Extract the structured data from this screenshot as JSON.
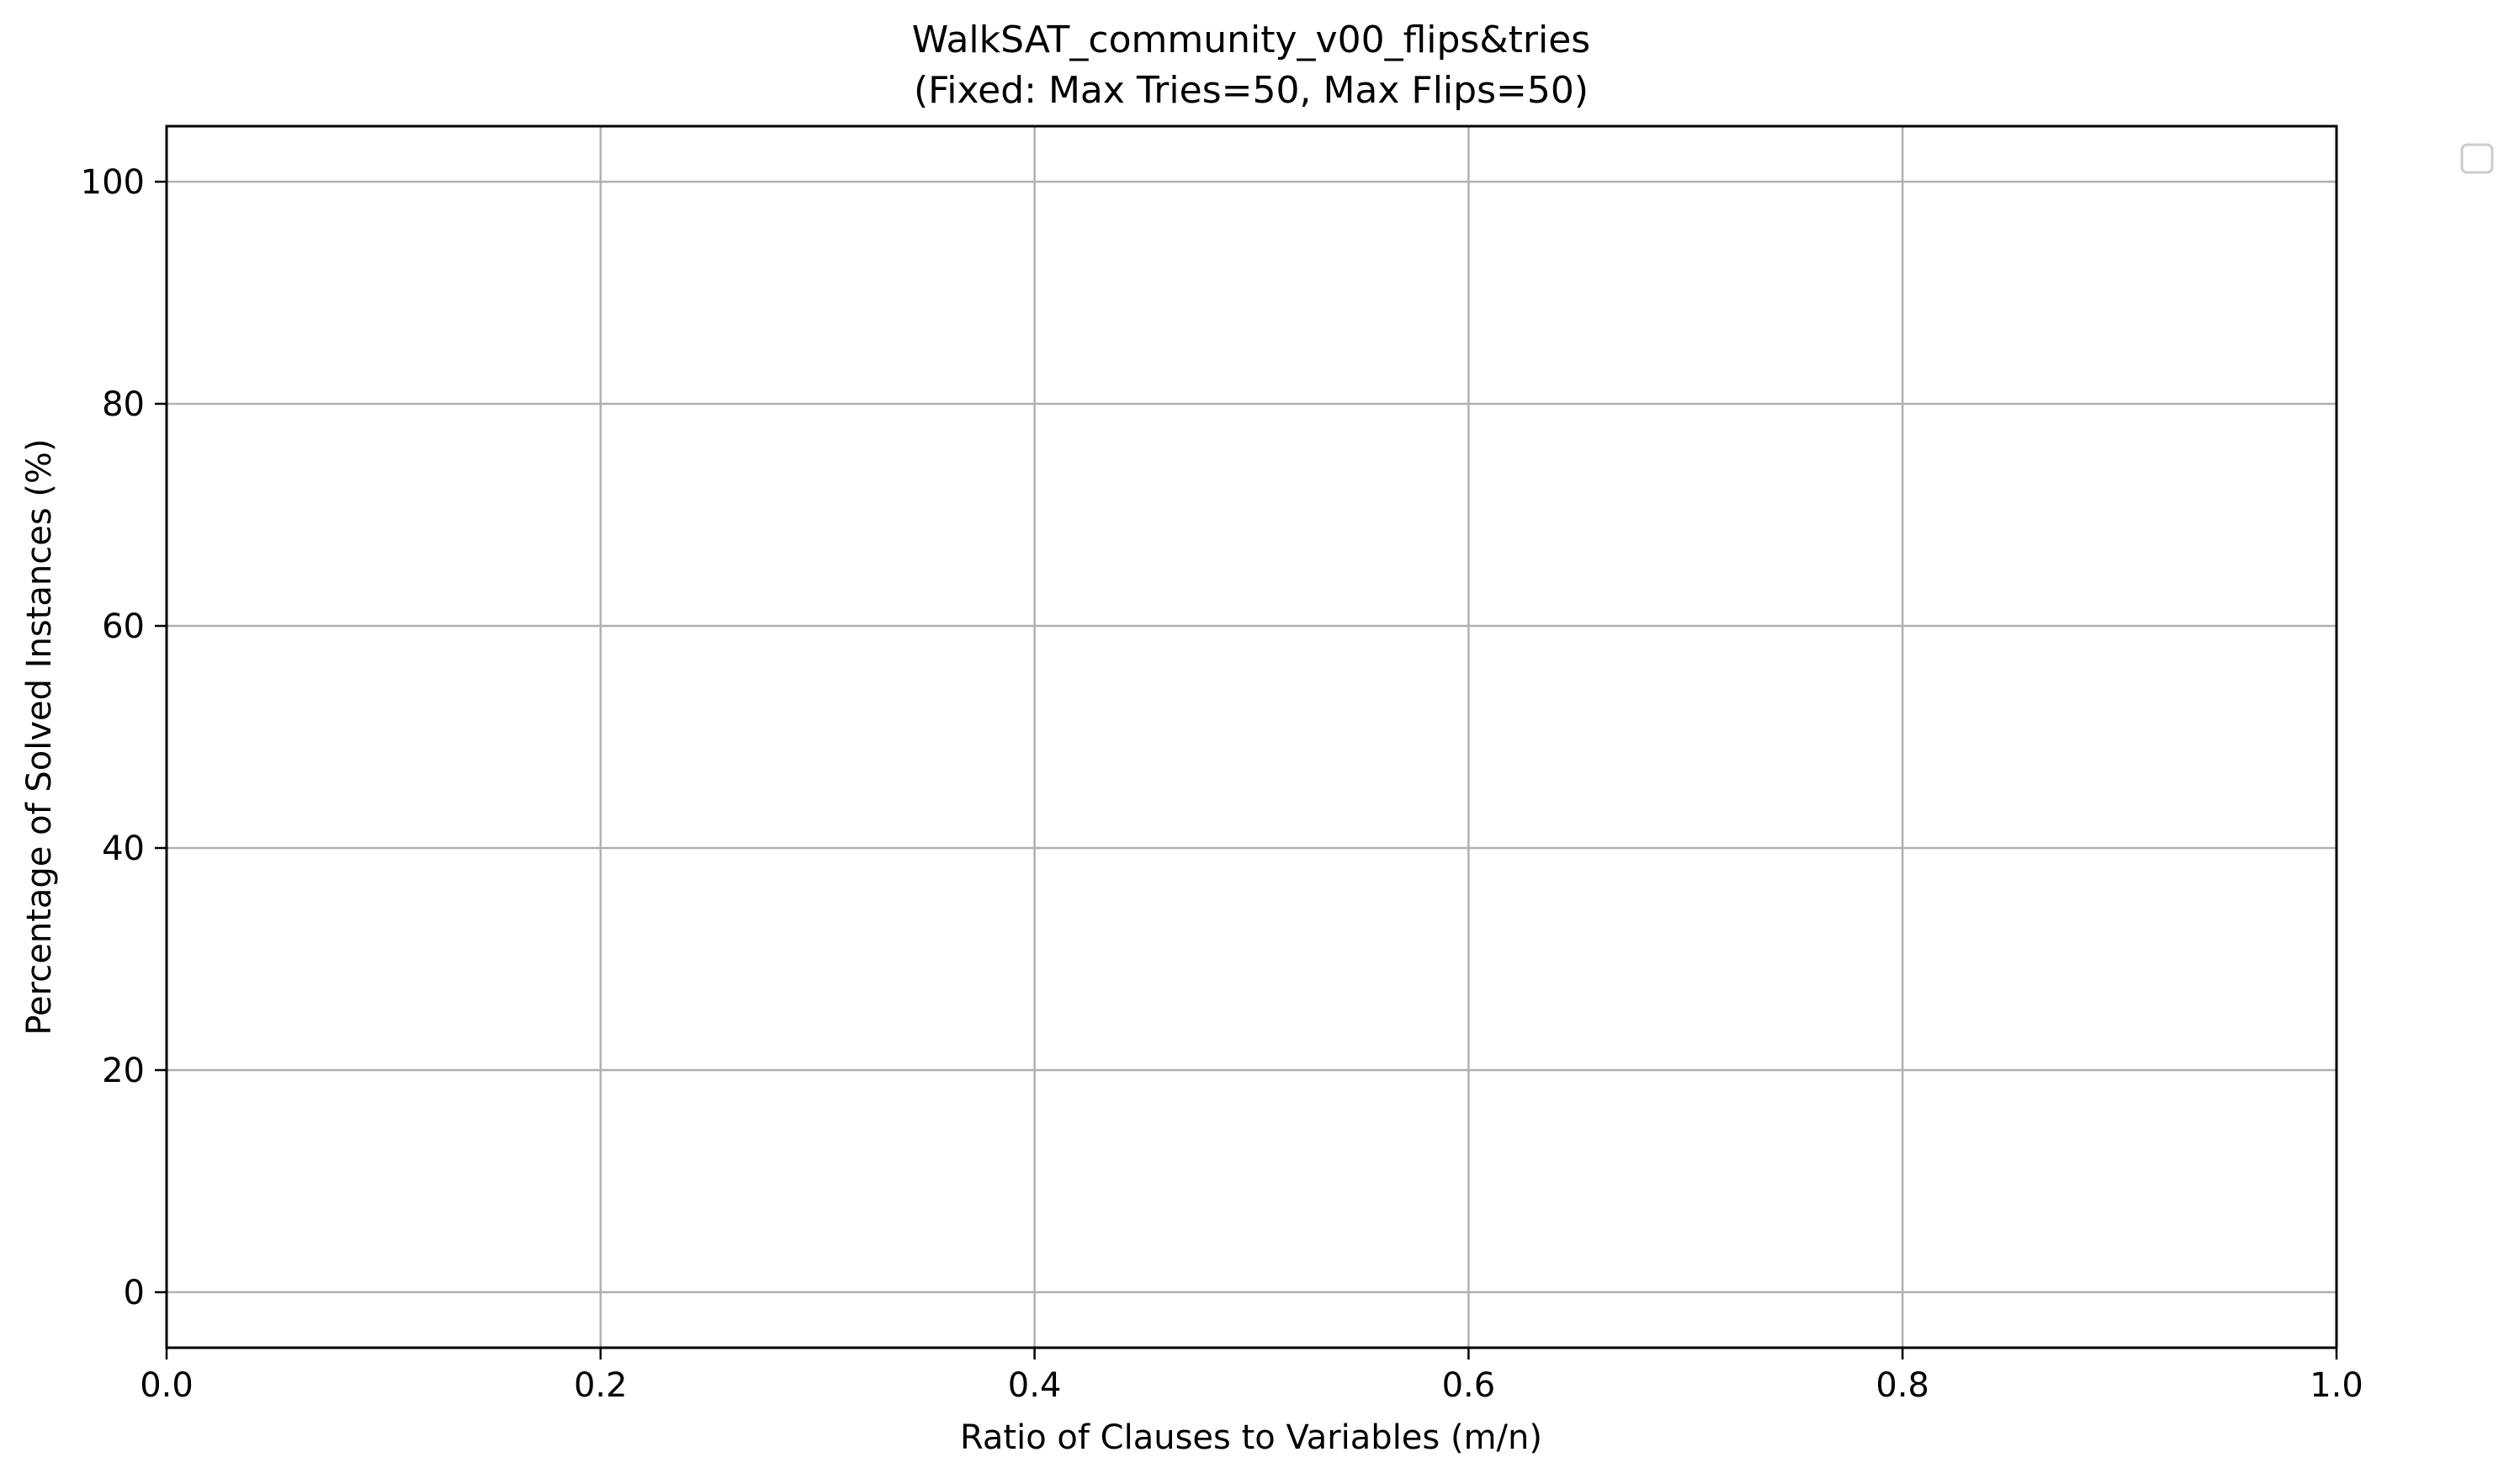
{
  "chart_data": {
    "type": "line",
    "title": "WalkSAT_community_v00_flips&tries",
    "subtitle": "(Fixed: Max Tries=50, Max Flips=50)",
    "xlabel": "Ratio of Clauses to Variables (m/n)",
    "ylabel": "Percentage of Solved Instances (%)",
    "xlim": [
      0.0,
      1.0
    ],
    "ylim": [
      -5,
      105
    ],
    "xticks": [
      "0.0",
      "0.2",
      "0.4",
      "0.6",
      "0.8",
      "1.0"
    ],
    "yticks": [
      "0",
      "20",
      "40",
      "60",
      "80",
      "100"
    ],
    "grid": true,
    "legend": "outside-top-right",
    "series": [],
    "colors": {
      "grid": "#b0b0b0",
      "axes": "#000000",
      "legend_border": "#cccccc"
    }
  }
}
